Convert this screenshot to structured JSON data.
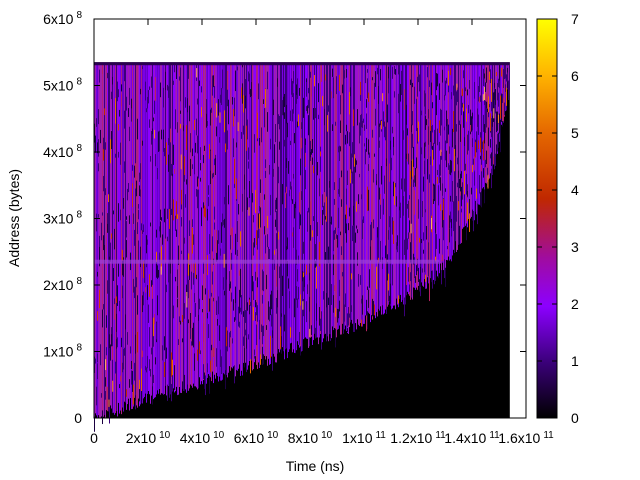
{
  "chart_data": {
    "type": "heatmap",
    "title": "",
    "xlabel": "Time (ns)",
    "ylabel": "Address (bytes)",
    "xlim": [
      0,
      160000000000.0
    ],
    "ylim": [
      0,
      600000000.0
    ],
    "x_ticks": [
      {
        "value": 0,
        "base": "0",
        "exp": ""
      },
      {
        "value": 20000000000.0,
        "base": "2x10",
        "exp": "10"
      },
      {
        "value": 40000000000.0,
        "base": "4x10",
        "exp": "10"
      },
      {
        "value": 60000000000.0,
        "base": "6x10",
        "exp": "10"
      },
      {
        "value": 80000000000.0,
        "base": "8x10",
        "exp": "10"
      },
      {
        "value": 100000000000.0,
        "base": "1x10",
        "exp": "11"
      },
      {
        "value": 120000000000.0,
        "base": "1.2x10",
        "exp": "11"
      },
      {
        "value": 140000000000.0,
        "base": "1.4x10",
        "exp": "11"
      },
      {
        "value": 160000000000.0,
        "base": "1.6x10",
        "exp": "11"
      }
    ],
    "y_ticks": [
      {
        "value": 0,
        "base": "0",
        "exp": ""
      },
      {
        "value": 100000000.0,
        "base": "1x10",
        "exp": "8"
      },
      {
        "value": 200000000.0,
        "base": "2x10",
        "exp": "8"
      },
      {
        "value": 300000000.0,
        "base": "3x10",
        "exp": "8"
      },
      {
        "value": 400000000.0,
        "base": "4x10",
        "exp": "8"
      },
      {
        "value": 500000000.0,
        "base": "5x10",
        "exp": "8"
      },
      {
        "value": 600000000.0,
        "base": "6x10",
        "exp": "8"
      }
    ],
    "colorbar": {
      "range": [
        0,
        7
      ],
      "ticks": [
        "0",
        "1",
        "2",
        "3",
        "4",
        "5",
        "6",
        "7"
      ],
      "palette": [
        "#000000",
        "#3b007a",
        "#8c00ff",
        "#9b22c8",
        "#c02800",
        "#e66a00",
        "#ffb400",
        "#ffff00"
      ]
    },
    "data_extent": {
      "x_max": 154000000000.0,
      "y_max": 535000000.0
    },
    "boundary": {
      "description": "lower boundary of accessed region (address vs time)",
      "x": [
        0,
        20000000000.0,
        40000000000.0,
        60000000000.0,
        80000000000.0,
        100000000000.0,
        120000000000.0,
        130000000000.0,
        140000000000.0,
        148000000000.0,
        152000000000.0,
        154000000000.0
      ],
      "y": [
        0,
        30000000.0,
        55000000.0,
        80000000.0,
        115000000.0,
        145000000.0,
        190000000.0,
        230000000.0,
        300000000.0,
        380000000.0,
        460000000.0,
        535000000.0
      ]
    },
    "band_address": 235000000.0
  }
}
